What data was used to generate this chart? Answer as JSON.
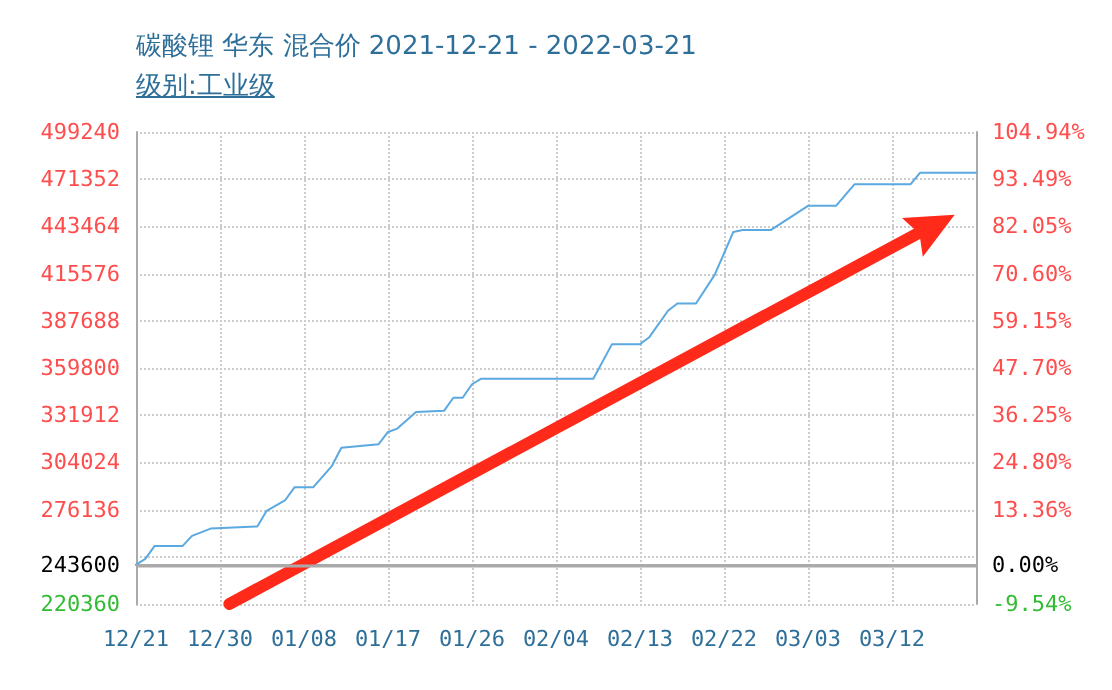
{
  "chart_data": {
    "type": "line",
    "title": "碳酸锂 华东 混合价 2021-12-21 - 2022-03-21",
    "subtitle": "级别:工业级",
    "x": [
      "2021-12-21",
      "2021-12-22",
      "2021-12-23",
      "2021-12-26",
      "2021-12-27",
      "2021-12-29",
      "2022-01-03",
      "2022-01-04",
      "2022-01-06",
      "2022-01-07",
      "2022-01-09",
      "2022-01-11",
      "2022-01-12",
      "2022-01-16",
      "2022-01-17",
      "2022-01-18",
      "2022-01-20",
      "2022-01-23",
      "2022-01-24",
      "2022-01-25",
      "2022-01-26",
      "2022-01-27",
      "2022-02-08",
      "2022-02-10",
      "2022-02-13",
      "2022-02-14",
      "2022-02-16",
      "2022-02-17",
      "2022-02-19",
      "2022-02-21",
      "2022-02-23",
      "2022-02-24",
      "2022-02-27",
      "2022-03-03",
      "2022-03-06",
      "2022-03-08",
      "2022-03-14",
      "2022-03-15",
      "2022-03-21"
    ],
    "series": [
      {
        "color": "#5aa9e0",
        "values": [
          243600,
          247000,
          254700,
          254700,
          260600,
          264900,
          266200,
          275400,
          281800,
          289400,
          289400,
          302000,
          312700,
          314800,
          322000,
          324000,
          333800,
          334500,
          342200,
          342200,
          350200,
          353500,
          353500,
          373900,
          373900,
          378000,
          393600,
          397900,
          397900,
          414800,
          440200,
          441300,
          441300,
          455600,
          455600,
          468400,
          468400,
          475100,
          475100
        ]
      },
      {
        "type": "line",
        "color": "#ff2a1a",
        "x": [
          "2021-12-31",
          "2022-03-16"
        ],
        "values": [
          220360,
          443000
        ]
      }
    ],
    "xlim": [
      "2021-12-21",
      "2022-03-21"
    ],
    "xticks": [
      {
        "value": "2021-12-21",
        "label": "12/21"
      },
      {
        "value": "2021-12-30",
        "label": "12/30"
      },
      {
        "value": "2022-01-08",
        "label": "01/08"
      },
      {
        "value": "2022-01-17",
        "label": "01/17"
      },
      {
        "value": "2022-01-26",
        "label": "01/26"
      },
      {
        "value": "2022-02-04",
        "label": "02/04"
      },
      {
        "value": "2022-02-13",
        "label": "02/13"
      },
      {
        "value": "2022-02-22",
        "label": "02/22"
      },
      {
        "value": "2022-03-03",
        "label": "03/03"
      },
      {
        "value": "2022-03-12",
        "label": "03/12"
      }
    ],
    "ylim": [
      220360,
      499240
    ],
    "yticks": [
      220360,
      243600,
      {
        "value": 248248,
        "label": null
      },
      276136,
      304024,
      331912,
      359800,
      387688,
      415576,
      443464,
      471352,
      499240
    ],
    "y2lim": [
      -9.54,
      104.94
    ],
    "y2ticks": [
      {
        "value": -9.54,
        "label": "-9.54%"
      },
      {
        "value": 0,
        "label": "0.00%"
      },
      {
        "value": 13.36,
        "label": "13.36%"
      },
      {
        "value": 24.8,
        "label": "24.80%"
      },
      {
        "value": 36.25,
        "label": "36.25%"
      },
      {
        "value": 47.7,
        "label": "47.70%"
      },
      {
        "value": 59.15,
        "label": "59.15%"
      },
      {
        "value": 70.6,
        "label": "70.60%"
      },
      {
        "value": 82.05,
        "label": "82.05%"
      },
      {
        "value": 93.49,
        "label": "93.49%"
      },
      {
        "value": 104.94,
        "label": "104.94%"
      }
    ],
    "ref_lines": [
      {
        "axis": "y",
        "value": 243600,
        "color": "#aaaaaa",
        "line_style": "solid"
      }
    ],
    "grid": true
  }
}
